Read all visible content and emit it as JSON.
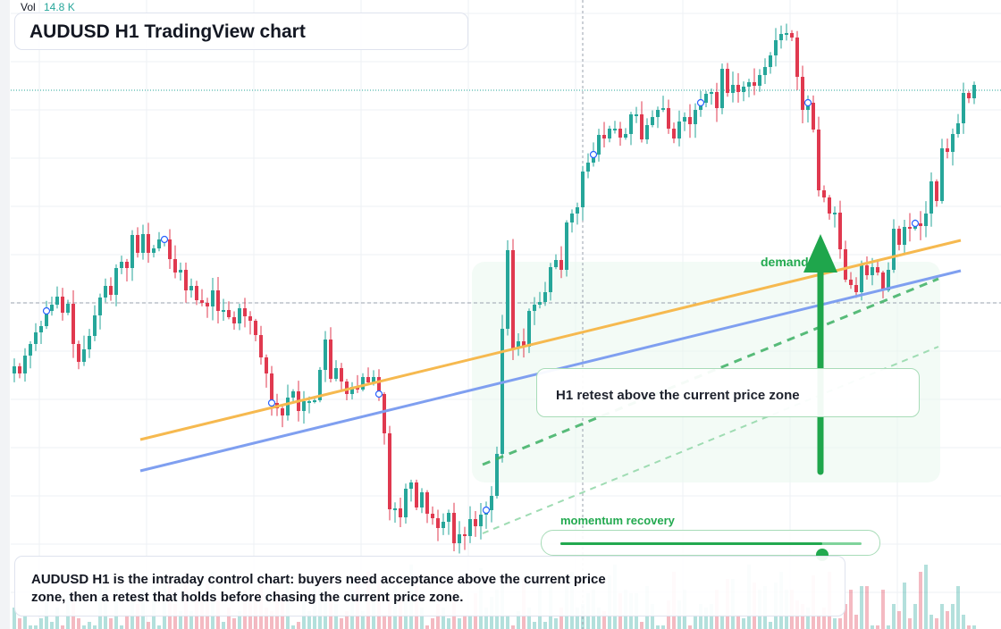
{
  "header": {
    "vol_label": "Vol",
    "vol_value": "14.8 K",
    "title": "AUDUSD H1 TradingView chart"
  },
  "annotations": {
    "retest_label": "H1 retest above the current price zone",
    "demand_label": "demand",
    "momentum_label": "momentum recovery",
    "momentum_level": 0.87,
    "caption": "AUDUSD H1 is the intraday control chart: buyers need acceptance above the current price zone, then a retest that holds before chasing the current price zone."
  },
  "colors": {
    "up": "#26a69a",
    "down": "#e0394f",
    "accent_green": "#22a94f",
    "orange_trend": "#f6b94f",
    "blue_trend": "#7f9ff0",
    "grid": "#eef0f4"
  },
  "chart_data": {
    "type": "candlestick",
    "symbol": "AUDUSD",
    "timeframe": "H1",
    "grid": true,
    "closes": [
      410,
      418,
      398,
      385,
      372,
      365,
      348,
      341,
      332,
      350,
      340,
      385,
      405,
      391,
      376,
      353,
      333,
      320,
      330,
      300,
      293,
      300,
      263,
      283,
      262,
      283,
      278,
      268,
      268,
      290,
      305,
      302,
      325,
      320,
      336,
      339,
      343,
      325,
      348,
      347,
      355,
      362,
      345,
      354,
      359,
      375,
      400,
      418,
      451,
      457,
      465,
      445,
      438,
      460,
      449,
      449,
      448,
      414,
      380,
      424,
      412,
      427,
      441,
      433,
      436,
      422,
      428,
      422,
      441,
      485,
      570,
      569,
      579,
      547,
      540,
      568,
      551,
      575,
      580,
      591,
      584,
      574,
      608,
      598,
      600,
      581,
      589,
      576,
      571,
      555,
      508,
      368,
      280,
      390,
      382,
      388,
      348,
      341,
      338,
      327,
      299,
      291,
      302,
      249,
      239,
      232,
      192,
      182,
      173,
      151,
      155,
      144,
      144,
      154,
      150,
      128,
      128,
      156,
      140,
      131,
      123,
      121,
      144,
      155,
      136,
      131,
      139,
      123,
      115,
      105,
      103,
      121,
      77,
      104,
      95,
      103,
      97,
      92,
      96,
      84,
      75,
      62,
      45,
      38,
      37,
      42,
      86,
      123,
      115,
      145,
      213,
      221,
      239,
      238,
      279,
      313,
      319,
      327,
      297,
      308,
      299,
      305,
      325,
      302,
      256,
      274,
      254,
      256,
      250,
      253,
      239,
      203,
      225,
      166,
      170,
      150,
      138,
      104,
      110,
      95
    ],
    "events": [
      {
        "index": 6,
        "type": "dot"
      },
      {
        "index": 28,
        "type": "dot"
      },
      {
        "index": 48,
        "type": "dot"
      },
      {
        "index": 68,
        "type": "dot"
      },
      {
        "index": 88,
        "type": "dot"
      },
      {
        "index": 108,
        "type": "dot"
      },
      {
        "index": 128,
        "type": "dot"
      },
      {
        "index": 148,
        "type": "dot"
      },
      {
        "index": 168,
        "type": "dot"
      }
    ],
    "volume": [
      6,
      3,
      4,
      1,
      1,
      3,
      8,
      2,
      6,
      1,
      9,
      11,
      3,
      1,
      2,
      1,
      13,
      12,
      3,
      11,
      1,
      4,
      8,
      7,
      11,
      2,
      12,
      1,
      13,
      12,
      7,
      5,
      16,
      5,
      11,
      8,
      13,
      16,
      8,
      2,
      6,
      3,
      5,
      11,
      8,
      10,
      13,
      6,
      5,
      11,
      9,
      13,
      1,
      2,
      8,
      5,
      12,
      11,
      13,
      9,
      7,
      3,
      5,
      11,
      13,
      5,
      16,
      11,
      14,
      4,
      9,
      12,
      9,
      8,
      18,
      12,
      6,
      1,
      3,
      7,
      6,
      3,
      11,
      3,
      4,
      4,
      10,
      17,
      6,
      9,
      11,
      13,
      4,
      1,
      5,
      14,
      6,
      2,
      13,
      2,
      13,
      3,
      6,
      12,
      16,
      6,
      7,
      10,
      11,
      6,
      5,
      15,
      18,
      10,
      11,
      10,
      10,
      2,
      12,
      7,
      1,
      1,
      8,
      16,
      8,
      11,
      1,
      4,
      7,
      6,
      7,
      11,
      4,
      14,
      14,
      4,
      3,
      18,
      13,
      11,
      12,
      2,
      13,
      16,
      11,
      11,
      8,
      7,
      6,
      15,
      4,
      6,
      16,
      3,
      3,
      7,
      11,
      4,
      12,
      12,
      1,
      1,
      11,
      1,
      7,
      5,
      13,
      3,
      7,
      16,
      18,
      4,
      3,
      7,
      5,
      7,
      12,
      4,
      1,
      1
    ]
  }
}
